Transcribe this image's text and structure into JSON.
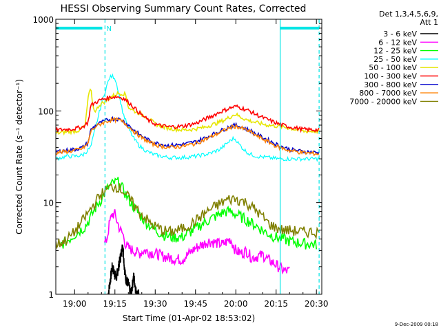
{
  "colors": {
    "background": "#ffffff",
    "axes": "#000000",
    "marker": "#00e5e5"
  },
  "chart_data": {
    "type": "line",
    "title": "HESSI Observing Summary Count Rates, Corrected",
    "xlabel": "Start Time (01-Apr-02 18:53:02)",
    "ylabel": "Corrected Count Rate (s⁻¹ detector⁻¹)",
    "x_unit": "minutes since 19:00 UT",
    "xlim": [
      -7,
      92
    ],
    "ylim": [
      1,
      1000
    ],
    "y_scale": "log",
    "x_ticks": [
      0,
      15,
      30,
      45,
      60,
      75,
      90
    ],
    "x_tick_labels": [
      "19:00",
      "19:15",
      "19:30",
      "19:45",
      "20:00",
      "20:15",
      "20:30"
    ],
    "y_ticks": [
      1,
      10,
      100,
      1000
    ],
    "y_tick_labels": [
      "1",
      "10",
      "100",
      "1000"
    ],
    "legend_header": [
      "Det 1,3,4,5,6,9,",
      "Att 1"
    ],
    "legend_position": "right",
    "footer_timestamp": "9-Dec-2009 00:18",
    "markers": {
      "vertical_lines_dashed": [
        11.3,
        91
      ],
      "vertical_lines_solid": [
        76.5
      ],
      "top_bars": [
        [
          -7,
          10.3
        ],
        [
          76.5,
          91
        ]
      ],
      "top_label": "N",
      "top_label_x": 12.8,
      "top_bar_y": 800
    },
    "series": [
      {
        "name": "3 - 6 keV",
        "color": "#000000",
        "x": [
          12.5,
          14,
          15.5,
          17,
          18,
          18.5,
          19,
          20,
          21,
          22,
          23,
          24
        ],
        "y": [
          1,
          2.0,
          1.5,
          2.5,
          3.5,
          2.0,
          1.5,
          1.3,
          1.0,
          1.6,
          1.0,
          1.0
        ]
      },
      {
        "name": "6 - 12 keV",
        "color": "#ff00ff",
        "x": [
          11,
          12,
          13,
          14,
          15,
          16,
          17,
          18,
          19,
          20,
          22,
          24,
          26,
          30,
          35,
          40,
          45,
          50,
          55,
          58,
          60,
          62,
          64,
          66,
          68,
          70,
          72,
          74,
          76,
          78,
          80
        ],
        "y": [
          3.5,
          4.0,
          6.0,
          7.5,
          7.5,
          6.0,
          5.0,
          4.5,
          3.5,
          3.2,
          3.0,
          2.8,
          3.0,
          2.8,
          2.5,
          2.4,
          3.2,
          3.8,
          3.5,
          4.0,
          3.0,
          2.8,
          3.0,
          2.5,
          2.6,
          2.7,
          2.4,
          2.2,
          2.0,
          1.8,
          1.8
        ]
      },
      {
        "name": "12 - 25 keV",
        "color": "#00ff00",
        "x": [
          -5,
          -2,
          0,
          2,
          4,
          6,
          8,
          10,
          12,
          14,
          16,
          18,
          20,
          22,
          24,
          27,
          30,
          33,
          36,
          40,
          44,
          48,
          52,
          56,
          58,
          60,
          62,
          64,
          66,
          68,
          70,
          72,
          75,
          78,
          80,
          85,
          90
        ],
        "y": [
          3.5,
          4.0,
          4.5,
          5.0,
          5.5,
          7.0,
          9.0,
          11.0,
          14.0,
          16.0,
          17.0,
          14.0,
          11.0,
          9.0,
          7.5,
          6.0,
          5.0,
          4.5,
          4.2,
          4.2,
          5.0,
          6.0,
          7.0,
          8.0,
          8.0,
          7.5,
          7.0,
          6.5,
          6.0,
          5.5,
          5.0,
          4.6,
          4.2,
          4.0,
          3.8,
          3.6,
          3.5
        ]
      },
      {
        "name": "25 - 50 keV",
        "color": "#00ffff",
        "x": [
          -7,
          -3,
          0,
          3,
          6,
          8,
          10,
          12,
          13,
          14,
          15,
          16,
          17,
          18,
          20,
          22,
          24,
          27,
          30,
          35,
          40,
          45,
          50,
          54,
          57,
          59,
          60,
          61,
          63,
          65,
          68,
          72,
          76,
          80,
          85,
          91
        ],
        "y": [
          30,
          32,
          32,
          33,
          40,
          70,
          120,
          190,
          230,
          240,
          230,
          180,
          130,
          95,
          65,
          50,
          42,
          36,
          33,
          31,
          31,
          32,
          34,
          38,
          45,
          50,
          49,
          44,
          38,
          34,
          32,
          31,
          30,
          30,
          30,
          30
        ]
      },
      {
        "name": "50 - 100 keV",
        "color": "#e6e600",
        "x": [
          -7,
          -3,
          0,
          2,
          4,
          5,
          6,
          7,
          8,
          9,
          10,
          12,
          14,
          16,
          18,
          19,
          20,
          22,
          24,
          27,
          30,
          33,
          36,
          40,
          44,
          48,
          52,
          56,
          59,
          60,
          61,
          64,
          68,
          72,
          76,
          80,
          85,
          91
        ],
        "y": [
          57,
          59,
          60,
          62,
          70,
          140,
          175,
          105,
          100,
          115,
          120,
          130,
          145,
          155,
          155,
          150,
          110,
          100,
          95,
          85,
          72,
          67,
          64,
          62,
          63,
          66,
          72,
          80,
          90,
          92,
          88,
          80,
          74,
          70,
          68,
          65,
          60,
          60
        ]
      },
      {
        "name": "100 - 300 keV",
        "color": "#ff0000",
        "x": [
          -7,
          -3,
          0,
          3,
          5,
          6,
          8,
          10,
          12,
          14,
          16,
          18,
          20,
          22,
          25,
          28,
          31,
          35,
          40,
          45,
          50,
          55,
          58,
          60,
          62,
          65,
          68,
          72,
          76,
          80,
          85,
          91
        ],
        "y": [
          62,
          63,
          64,
          67,
          75,
          115,
          125,
          133,
          138,
          142,
          143,
          138,
          125,
          110,
          90,
          77,
          70,
          67,
          68,
          73,
          85,
          100,
          108,
          112,
          108,
          100,
          90,
          80,
          72,
          67,
          63,
          62
        ]
      },
      {
        "name": "300 - 800 keV",
        "color": "#0000cc",
        "x": [
          -7,
          -3,
          0,
          3,
          5,
          6,
          8,
          10,
          12,
          14,
          16,
          18,
          20,
          22,
          25,
          28,
          31,
          35,
          40,
          45,
          50,
          55,
          58,
          60,
          62,
          65,
          68,
          72,
          76,
          80,
          85,
          91
        ],
        "y": [
          36,
          37,
          38,
          40,
          45,
          62,
          70,
          75,
          79,
          82,
          82,
          78,
          70,
          62,
          53,
          47,
          44,
          42,
          43,
          46,
          53,
          62,
          68,
          70,
          67,
          62,
          55,
          48,
          42,
          38,
          36,
          35
        ]
      },
      {
        "name": "800 - 7000 keV",
        "color": "#ff8000",
        "x": [
          -7,
          -3,
          0,
          3,
          5,
          6,
          8,
          10,
          12,
          14,
          16,
          18,
          20,
          22,
          25,
          28,
          31,
          35,
          40,
          45,
          50,
          55,
          58,
          60,
          62,
          65,
          68,
          72,
          76,
          80,
          85,
          91
        ],
        "y": [
          35,
          36,
          37,
          39,
          44,
          60,
          68,
          73,
          77,
          80,
          80,
          76,
          68,
          60,
          51,
          45,
          42,
          40,
          41,
          44,
          51,
          60,
          66,
          68,
          65,
          60,
          53,
          46,
          40,
          37,
          35,
          34
        ]
      },
      {
        "name": "7000 - 20000 keV",
        "color": "#808000",
        "x": [
          -7,
          -4,
          -2,
          0,
          2,
          4,
          6,
          8,
          10,
          12,
          14,
          16,
          18,
          20,
          22,
          24,
          26,
          28,
          30,
          33,
          36,
          40,
          44,
          48,
          52,
          56,
          58,
          60,
          62,
          64,
          66,
          68,
          70,
          72,
          74,
          76,
          78,
          80,
          85,
          91
        ],
        "y": [
          3.5,
          3.8,
          4.2,
          4.8,
          5.8,
          7.0,
          8.5,
          10.5,
          12.5,
          14.0,
          15.0,
          15.0,
          13.5,
          11.5,
          9.5,
          8.0,
          7.0,
          6.0,
          5.5,
          5.0,
          4.8,
          5.2,
          6.0,
          7.5,
          9.0,
          10.5,
          11.0,
          11.0,
          10.5,
          10.0,
          9.0,
          8.0,
          7.0,
          6.0,
          5.5,
          5.2,
          5.0,
          5.0,
          4.8,
          4.8
        ]
      }
    ]
  }
}
